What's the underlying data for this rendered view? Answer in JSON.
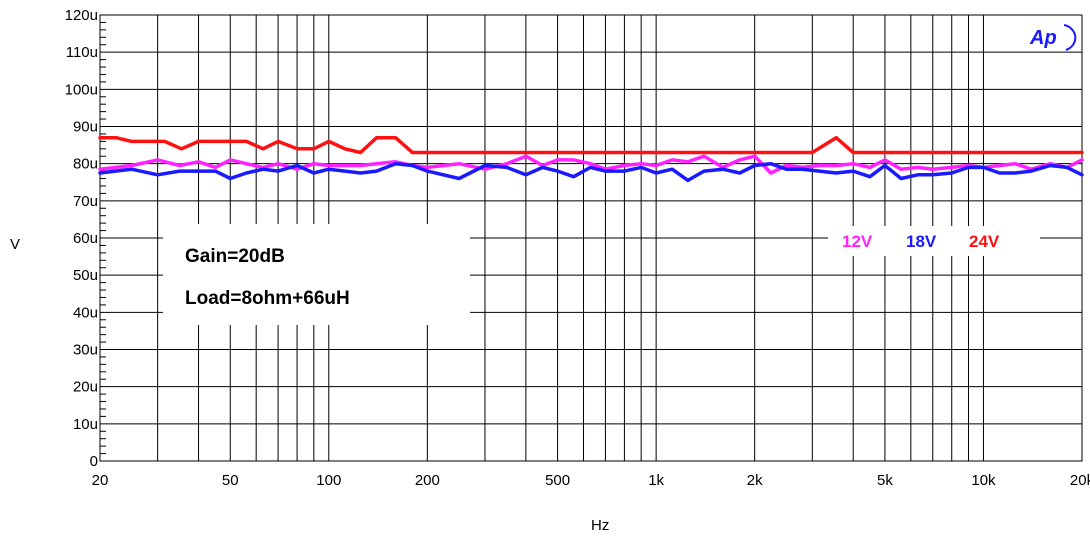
{
  "chart_data": {
    "type": "line",
    "xlabel": "Hz",
    "ylabel": "V",
    "x_scale": "log",
    "xlim": [
      20,
      20000
    ],
    "ylim": [
      0,
      0.00012
    ],
    "x_ticks": [
      {
        "value": 20,
        "label": "20"
      },
      {
        "value": 50,
        "label": "50"
      },
      {
        "value": 100,
        "label": "100"
      },
      {
        "value": 200,
        "label": "200"
      },
      {
        "value": 500,
        "label": "500"
      },
      {
        "value": 1000,
        "label": "1k"
      },
      {
        "value": 2000,
        "label": "2k"
      },
      {
        "value": 5000,
        "label": "5k"
      },
      {
        "value": 10000,
        "label": "10k"
      },
      {
        "value": 20000,
        "label": "20k"
      }
    ],
    "y_ticks": [
      {
        "value": 0,
        "label": "0"
      },
      {
        "value": 1e-05,
        "label": "10u"
      },
      {
        "value": 2e-05,
        "label": "20u"
      },
      {
        "value": 3e-05,
        "label": "30u"
      },
      {
        "value": 4e-05,
        "label": "40u"
      },
      {
        "value": 5e-05,
        "label": "50u"
      },
      {
        "value": 6e-05,
        "label": "60u"
      },
      {
        "value": 7e-05,
        "label": "70u"
      },
      {
        "value": 8e-05,
        "label": "80u"
      },
      {
        "value": 9e-05,
        "label": "90u"
      },
      {
        "value": 0.0001,
        "label": "100u"
      },
      {
        "value": 0.00011,
        "label": "110u"
      },
      {
        "value": 0.00012,
        "label": "120u"
      }
    ],
    "grid": true,
    "legend_position": "right, middle",
    "annotations": [
      "Gain=20dB",
      "Load=8ohm+66uH"
    ],
    "logo_text": "Ap",
    "series": [
      {
        "name": "12V",
        "color": "#ff22ff",
        "x": [
          20,
          25,
          30,
          35,
          40,
          45,
          50,
          56,
          63,
          70,
          80,
          90,
          100,
          112,
          125,
          140,
          160,
          180,
          200,
          250,
          300,
          350,
          400,
          450,
          500,
          560,
          630,
          700,
          800,
          900,
          1000,
          1120,
          1250,
          1400,
          1600,
          1800,
          2000,
          2240,
          2500,
          2800,
          3150,
          3550,
          4000,
          4500,
          5000,
          5600,
          6300,
          7000,
          8000,
          9000,
          10000,
          11200,
          12500,
          14000,
          16000,
          18000,
          20000
        ],
        "values": [
          7.85e-05,
          7.95e-05,
          8.1e-05,
          7.95e-05,
          8.05e-05,
          7.9e-05,
          8.1e-05,
          8e-05,
          7.9e-05,
          8e-05,
          7.85e-05,
          8e-05,
          7.95e-05,
          7.95e-05,
          7.95e-05,
          8e-05,
          8.05e-05,
          7.95e-05,
          7.9e-05,
          8e-05,
          7.85e-05,
          8e-05,
          8.2e-05,
          7.95e-05,
          8.1e-05,
          8.1e-05,
          8e-05,
          7.85e-05,
          7.95e-05,
          8e-05,
          7.95e-05,
          8.1e-05,
          8.05e-05,
          8.2e-05,
          7.9e-05,
          8.1e-05,
          8.2e-05,
          7.75e-05,
          7.95e-05,
          7.9e-05,
          7.95e-05,
          7.95e-05,
          8e-05,
          7.9e-05,
          8.1e-05,
          7.85e-05,
          7.9e-05,
          7.85e-05,
          7.9e-05,
          7.95e-05,
          7.9e-05,
          7.95e-05,
          8e-05,
          7.85e-05,
          8e-05,
          7.9e-05,
          8.1e-05
        ]
      },
      {
        "name": "18V",
        "color": "#1a1aff",
        "x": [
          20,
          25,
          30,
          35,
          40,
          45,
          50,
          56,
          63,
          70,
          80,
          90,
          100,
          112,
          125,
          140,
          160,
          180,
          200,
          250,
          300,
          350,
          400,
          450,
          500,
          560,
          630,
          700,
          800,
          900,
          1000,
          1120,
          1250,
          1400,
          1600,
          1800,
          2000,
          2240,
          2500,
          2800,
          3150,
          3550,
          4000,
          4500,
          5000,
          5600,
          6300,
          7000,
          8000,
          9000,
          10000,
          11200,
          12500,
          14000,
          16000,
          18000,
          20000
        ],
        "values": [
          7.75e-05,
          7.85e-05,
          7.7e-05,
          7.8e-05,
          7.8e-05,
          7.8e-05,
          7.6e-05,
          7.75e-05,
          7.85e-05,
          7.8e-05,
          7.95e-05,
          7.75e-05,
          7.85e-05,
          7.8e-05,
          7.75e-05,
          7.8e-05,
          8e-05,
          7.95e-05,
          7.8e-05,
          7.6e-05,
          7.95e-05,
          7.9e-05,
          7.7e-05,
          7.9e-05,
          7.8e-05,
          7.65e-05,
          7.9e-05,
          7.8e-05,
          7.8e-05,
          7.9e-05,
          7.75e-05,
          7.85e-05,
          7.55e-05,
          7.8e-05,
          7.85e-05,
          7.75e-05,
          7.95e-05,
          8e-05,
          7.85e-05,
          7.85e-05,
          7.8e-05,
          7.75e-05,
          7.8e-05,
          7.65e-05,
          7.95e-05,
          7.6e-05,
          7.7e-05,
          7.7e-05,
          7.75e-05,
          7.9e-05,
          7.9e-05,
          7.75e-05,
          7.75e-05,
          7.8e-05,
          7.95e-05,
          7.9e-05,
          7.7e-05
        ]
      },
      {
        "name": "24V",
        "color": "#ff1111",
        "x": [
          20,
          22.4,
          25,
          28,
          31.5,
          35.5,
          40,
          45,
          50,
          56,
          63,
          70,
          80,
          90,
          100,
          112,
          125,
          140,
          160,
          180,
          200,
          250,
          300,
          500,
          1000,
          2000,
          3000,
          3550,
          4000,
          5000,
          10000,
          20000
        ],
        "values": [
          8.7e-05,
          8.7e-05,
          8.6e-05,
          8.6e-05,
          8.6e-05,
          8.4e-05,
          8.6e-05,
          8.6e-05,
          8.6e-05,
          8.6e-05,
          8.4e-05,
          8.6e-05,
          8.4e-05,
          8.4e-05,
          8.6e-05,
          8.4e-05,
          8.3e-05,
          8.7e-05,
          8.7e-05,
          8.3e-05,
          8.3e-05,
          8.3e-05,
          8.3e-05,
          8.3e-05,
          8.3e-05,
          8.3e-05,
          8.3e-05,
          8.7e-05,
          8.3e-05,
          8.3e-05,
          8.3e-05,
          8.3e-05
        ]
      }
    ]
  }
}
